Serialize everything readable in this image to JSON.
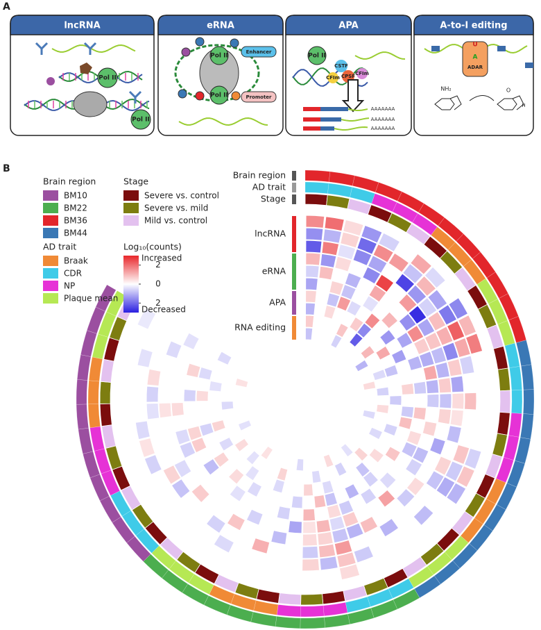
{
  "panel_a": {
    "letter": "A",
    "panels": [
      {
        "title": "lncRNA",
        "labels": [
          "Pol II",
          "Pol II"
        ]
      },
      {
        "title": "eRNA",
        "labels": [
          "Pol II",
          "Pol II",
          "Enhancer",
          "Promoter"
        ]
      },
      {
        "title": "APA",
        "labels": [
          "Pol II",
          "CSTF",
          "CFIm",
          "CPSF",
          "CFIm",
          "AAAAAAA",
          "AAAAAAA",
          "AAAAAAA"
        ]
      },
      {
        "title": "A-to-I editing",
        "labels": [
          "U",
          "A",
          "ADAR",
          "NH₂",
          "O",
          "H"
        ]
      }
    ]
  },
  "chart_data": {
    "type": "circular_heatmap",
    "letter": "B",
    "brain_region": {
      "label": "Brain region",
      "items": [
        {
          "name": "BM10",
          "color": "#9b4fa0"
        },
        {
          "name": "BM22",
          "color": "#4cae4f"
        },
        {
          "name": "BM36",
          "color": "#e2262b"
        },
        {
          "name": "BM44",
          "color": "#3a78b5"
        }
      ]
    },
    "ad_trait": {
      "label": "AD trait",
      "items": [
        {
          "name": "Braak",
          "color": "#f08a36"
        },
        {
          "name": "CDR",
          "color": "#3fcbe8"
        },
        {
          "name": "NP",
          "color": "#e632d6"
        },
        {
          "name": "Plaque mean",
          "color": "#b6e854"
        }
      ]
    },
    "stage": {
      "label": "Stage",
      "items": [
        {
          "name": "Severe vs. control",
          "color": "#7b0d0d"
        },
        {
          "name": "Severe vs. mild",
          "color": "#7d7d10"
        },
        {
          "name": "Mild vs. control",
          "color": "#e3c1ef"
        }
      ]
    },
    "colorbar": {
      "title": "Log₁₀(counts)",
      "high_label": "Increased",
      "low_label": "Decreased",
      "lim": [
        -3,
        3
      ],
      "ticks": [
        2,
        0,
        {
          "value": -2,
          "label": "2"
        }
      ],
      "high_color": "#e8262a",
      "low_color": "#2a1fe0"
    },
    "groups": [
      {
        "name": "lncRNA",
        "color": "#e2262b",
        "rows": [
          [
            1.6,
            2.0,
            0.5,
            -1.4,
            -0.6,
            null,
            1.2,
            -0.5,
            null,
            -1.6,
            1.0,
            1.8,
            null,
            null,
            null,
            null,
            null,
            -0.6,
            0.8,
            -1.0,
            null,
            null,
            null,
            null,
            null,
            null,
            0.5,
            null,
            null,
            null,
            null,
            null,
            null,
            null,
            null,
            null,
            null,
            null,
            null,
            null,
            null,
            null,
            null,
            null,
            null,
            null,
            null,
            -0.3
          ],
          [
            -1.5,
            -1.0,
            0.6,
            -2.0,
            1.6,
            1.4,
            -0.8,
            1.0,
            -1.2,
            -1.8,
            2.2,
            1.2,
            -0.6,
            null,
            0.9,
            null,
            null,
            0.8,
            -0.7,
            -1.1,
            null,
            -0.9,
            null,
            null,
            null,
            -0.7,
            0.8,
            -0.9,
            0.6,
            null,
            null,
            null,
            null,
            -0.5,
            null,
            null,
            null,
            null,
            null,
            -0.6,
            0.4,
            -0.5,
            null,
            null,
            null,
            -0.4,
            null,
            null
          ],
          [
            -2.2,
            1.8,
            -0.4,
            -1.6,
            -1.2,
            null,
            -2.5,
            -1.4,
            -0.6,
            0.9,
            1.1,
            -1.6,
            0.7,
            -1.2,
            0.5,
            0.4,
            -0.9,
            null,
            0.6,
            -0.8,
            null,
            null,
            null,
            -1.0,
            null,
            null,
            1.4,
            0.9,
            -0.7,
            null,
            null,
            1.1,
            null,
            null,
            -0.6,
            null,
            null,
            -0.8,
            0.6,
            null,
            null,
            null,
            -0.4,
            -0.6,
            0.5,
            null,
            null,
            null
          ]
        ]
      },
      {
        "name": "eRNA",
        "color": "#4cae4f",
        "rows": [
          [
            1.0,
            -1.4,
            0.5,
            null,
            -1.6,
            2.6,
            null,
            1.4,
            -2.8,
            -1.2,
            0.8,
            -0.9,
            -1.0,
            0.7,
            -0.8,
            0.6,
            null,
            -1.2,
            null,
            null,
            0.5,
            -0.7,
            null,
            null,
            0.9,
            -1.0,
            -0.8,
            0.6,
            0.5,
            null,
            -0.9,
            null,
            null,
            0.8,
            null,
            null,
            0.7,
            null,
            -0.5,
            null,
            null,
            null,
            0.4,
            null,
            null,
            null,
            -0.5,
            null
          ],
          [
            -0.6,
            0.9,
            null,
            -1.0,
            null,
            1.2,
            null,
            null,
            -1.5,
            1.6,
            0.7,
            -1.1,
            1.2,
            -1.0,
            -0.7,
            null,
            0.6,
            null,
            -0.9,
            -0.6,
            null,
            null,
            1.3,
            null,
            null,
            0.7,
            -0.5,
            1.0,
            0.4,
            -1.2,
            null,
            null,
            -0.6,
            null,
            null,
            null,
            null,
            null,
            null,
            -0.6,
            -0.5,
            null,
            0.5,
            null,
            null,
            null,
            null,
            -0.4
          ],
          [
            -1.2,
            null,
            0.6,
            -0.8,
            null,
            -0.4,
            null,
            1.0,
            null,
            -1.2,
            null,
            -1.0,
            null,
            -0.7,
            null,
            0.8,
            null,
            0.5,
            -0.8,
            null,
            null,
            -0.5,
            null,
            -0.6,
            null,
            -0.7,
            0.5,
            null,
            1.0,
            null,
            -0.6,
            null,
            null,
            null,
            -0.4,
            null,
            null,
            -0.9,
            null,
            0.7,
            0.6,
            null,
            null,
            -0.6,
            null,
            0.6,
            null,
            null
          ]
        ]
      },
      {
        "name": "APA",
        "color": "#9b4fa0",
        "rows": [
          [
            0.6,
            null,
            -0.8,
            1.4,
            -0.5,
            null,
            1.6,
            null,
            -1.4,
            null,
            -1.3,
            null,
            null,
            0.6,
            null,
            -0.7,
            0.9,
            null,
            null,
            0.8,
            null,
            null,
            -0.6,
            null,
            -1.0,
            null,
            -0.8,
            0.9,
            null,
            -0.6,
            null,
            null,
            null,
            -0.5,
            null,
            0.5,
            null,
            0.6,
            null,
            null,
            -0.6,
            null,
            null,
            0.5,
            null,
            -0.5,
            null,
            null
          ],
          [
            -1.0,
            null,
            0.5,
            null,
            null,
            0.7,
            -1.6,
            null,
            null,
            1.2,
            null,
            -0.8,
            null,
            null,
            -0.7,
            null,
            null,
            -0.6,
            null,
            null,
            0.5,
            null,
            -0.8,
            null,
            null,
            null,
            -0.5,
            null,
            0.6,
            null,
            null,
            -0.5,
            null,
            null,
            -0.4,
            null,
            null,
            null,
            -0.5,
            null,
            0.6,
            null,
            null,
            null,
            -0.4,
            null,
            null,
            -0.5
          ]
        ]
      },
      {
        "name": "RNA editing",
        "color": "#f08a36",
        "rows": [
          [
            0.7,
            null,
            null,
            null,
            0.8,
            null,
            -2.2,
            null,
            1.0,
            null,
            null,
            -0.5,
            null,
            -0.6,
            null,
            0.5,
            null,
            null,
            -0.5,
            null,
            null,
            0.6,
            null,
            null,
            -0.6,
            null,
            null,
            -0.5,
            null,
            null,
            null,
            0.6,
            null,
            null,
            null,
            -0.4,
            null,
            0.5,
            null,
            null,
            null,
            null,
            -0.5,
            null,
            null,
            null,
            null,
            null
          ],
          [
            -0.8,
            null,
            null,
            null,
            -0.6,
            null,
            null,
            null,
            null,
            -1.0,
            null,
            null,
            0.5,
            null,
            null,
            null,
            -0.5,
            null,
            null,
            null,
            null,
            null,
            -0.4,
            null,
            null,
            0.5,
            null,
            null,
            null,
            -0.5,
            null,
            null,
            null,
            null,
            0.4,
            null,
            null,
            null,
            null,
            -0.4,
            null,
            null,
            null,
            null,
            null,
            0.4,
            null,
            null
          ]
        ]
      }
    ]
  }
}
